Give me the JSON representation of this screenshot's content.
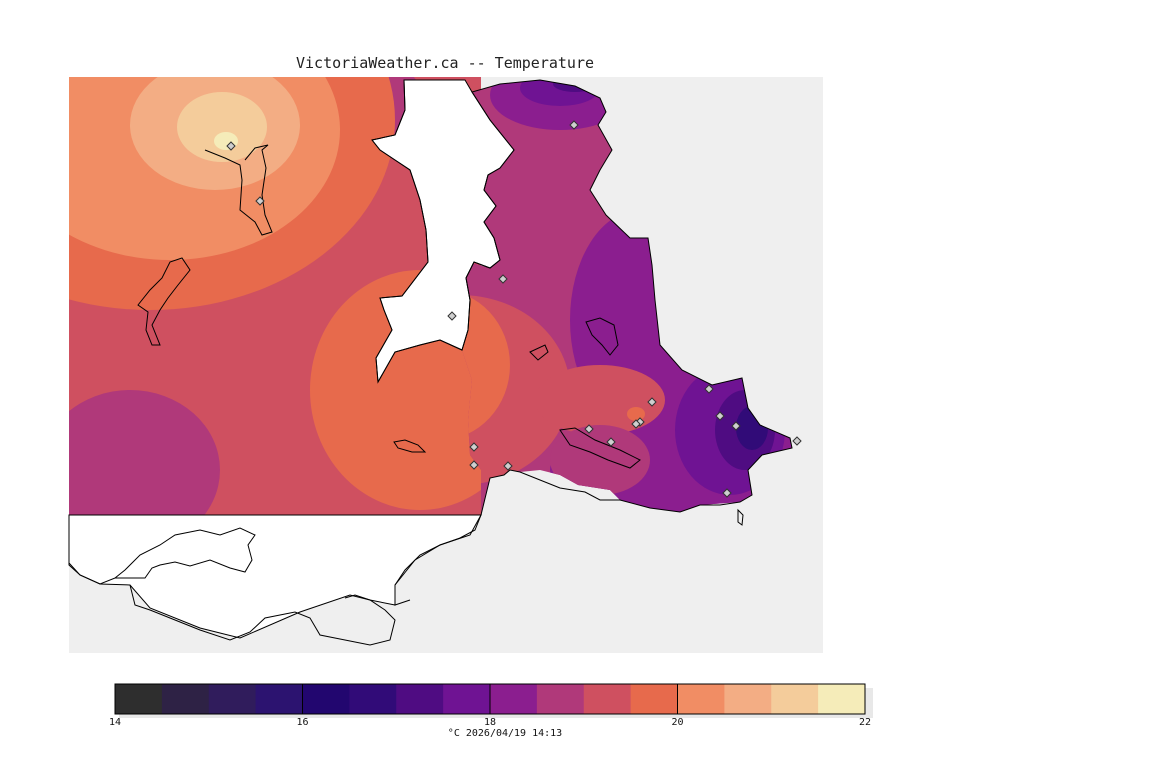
{
  "map": {
    "title": "VictoriaWeather.ca -- Temperature",
    "background_land_color": "#efefef",
    "station_count": 18
  },
  "colorbar": {
    "min": 14,
    "max": 22,
    "step": 0.5,
    "colors": [
      "#2e2e2e",
      "#2e2245",
      "#301c5c",
      "#2c1370",
      "#22066f",
      "#310b78",
      "#4f0c82",
      "#6f1393",
      "#8b1e8f",
      "#b0397a",
      "#cf5060",
      "#e76a4c",
      "#f18d64",
      "#f3ad84",
      "#f4cc9b",
      "#f5ecb9"
    ],
    "tick_labels": [
      "14",
      "16",
      "18",
      "20",
      "22"
    ],
    "caption": "°C  2026/04/19 14:13"
  }
}
